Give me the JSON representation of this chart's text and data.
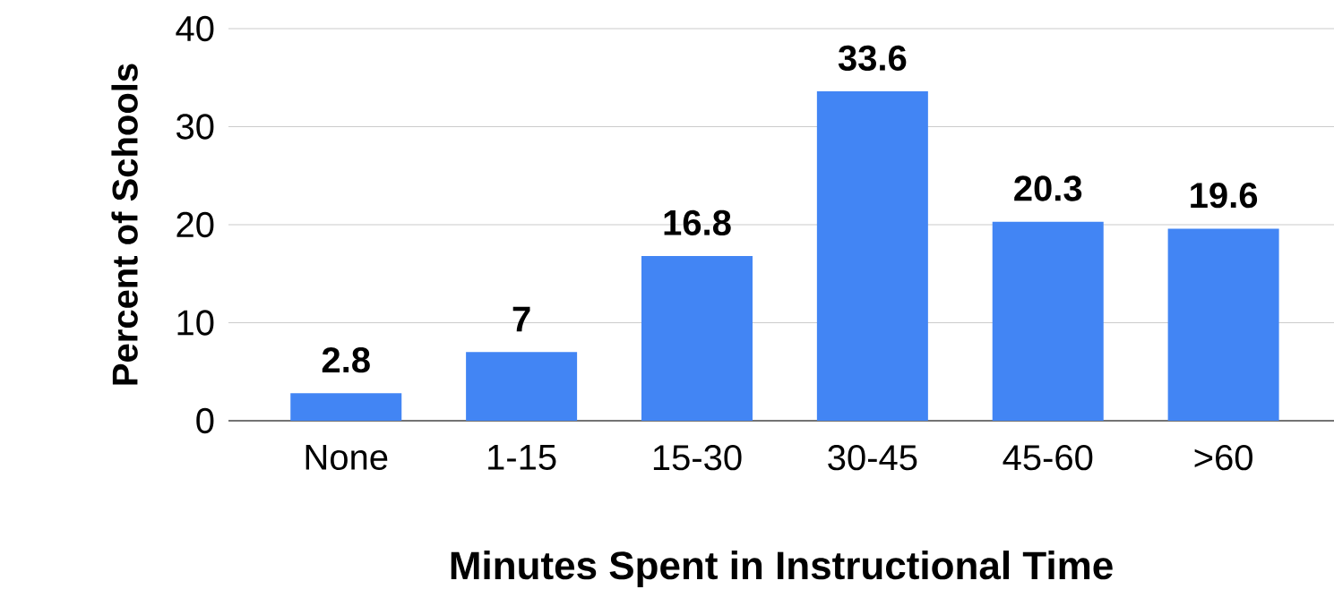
{
  "chart_data": {
    "type": "bar",
    "xlabel": "Minutes Spent in Instructional Time",
    "ylabel": "Percent of Schools",
    "categories": [
      "None",
      "1-15",
      "15-30",
      "30-45",
      "45-60",
      ">60"
    ],
    "values": [
      2.8,
      7,
      16.8,
      33.6,
      20.3,
      19.6
    ],
    "color": "#4285f4",
    "ylim": [
      0,
      40
    ],
    "yticks": [
      0,
      10,
      20,
      30,
      40
    ],
    "grid": "y",
    "data_labels": true
  }
}
